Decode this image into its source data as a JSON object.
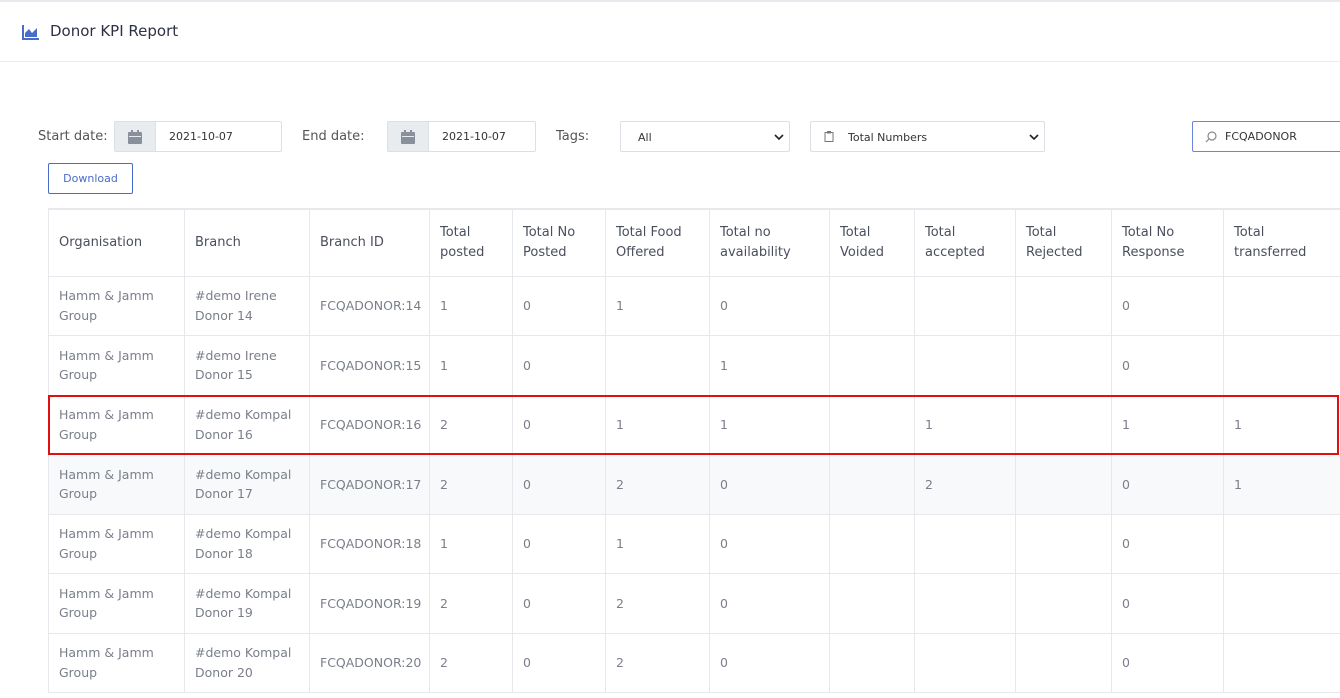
{
  "header": {
    "title": "Donor KPI Report"
  },
  "filters": {
    "start_label": "Start date:",
    "start_value": "2021-10-07",
    "end_label": "End date:",
    "end_value": "2021-10-07",
    "tags_label": "Tags:",
    "tags_value": "All",
    "mode_value": "Total Numbers",
    "search_value": "FCQADONOR",
    "download": "Download"
  },
  "table": {
    "columns": [
      "Organisation",
      "Branch",
      "Branch ID",
      "Total posted",
      "Total No Posted",
      "Total Food Offered",
      "Total no availability",
      "Total Voided",
      "Total accepted",
      "Total Rejected",
      "Total No Response",
      "Total transferred"
    ],
    "rows": [
      [
        "Hamm & Jamm Group",
        "#demo Irene Donor 14",
        "FCQADONOR:14",
        1,
        0,
        1,
        0,
        null,
        null,
        null,
        0,
        null
      ],
      [
        "Hamm & Jamm Group",
        "#demo Irene Donor 15",
        "FCQADONOR:15",
        1,
        0,
        null,
        1,
        null,
        null,
        null,
        0,
        null
      ],
      [
        "Hamm & Jamm Group",
        "#demo Kompal Donor 16",
        "FCQADONOR:16",
        2,
        0,
        1,
        1,
        null,
        1,
        null,
        1,
        1
      ],
      [
        "Hamm & Jamm Group",
        "#demo Kompal Donor 17",
        "FCQADONOR:17",
        2,
        0,
        2,
        0,
        null,
        2,
        null,
        0,
        1
      ],
      [
        "Hamm & Jamm Group",
        "#demo Kompal Donor 18",
        "FCQADONOR:18",
        1,
        0,
        1,
        0,
        null,
        null,
        null,
        0,
        null
      ],
      [
        "Hamm & Jamm Group",
        "#demo Kompal Donor 19",
        "FCQADONOR:19",
        2,
        0,
        2,
        0,
        null,
        null,
        null,
        0,
        null
      ],
      [
        "Hamm & Jamm Group",
        "#demo Kompal Donor 20",
        "FCQADONOR:20",
        2,
        0,
        2,
        0,
        null,
        null,
        null,
        0,
        null
      ]
    ]
  }
}
